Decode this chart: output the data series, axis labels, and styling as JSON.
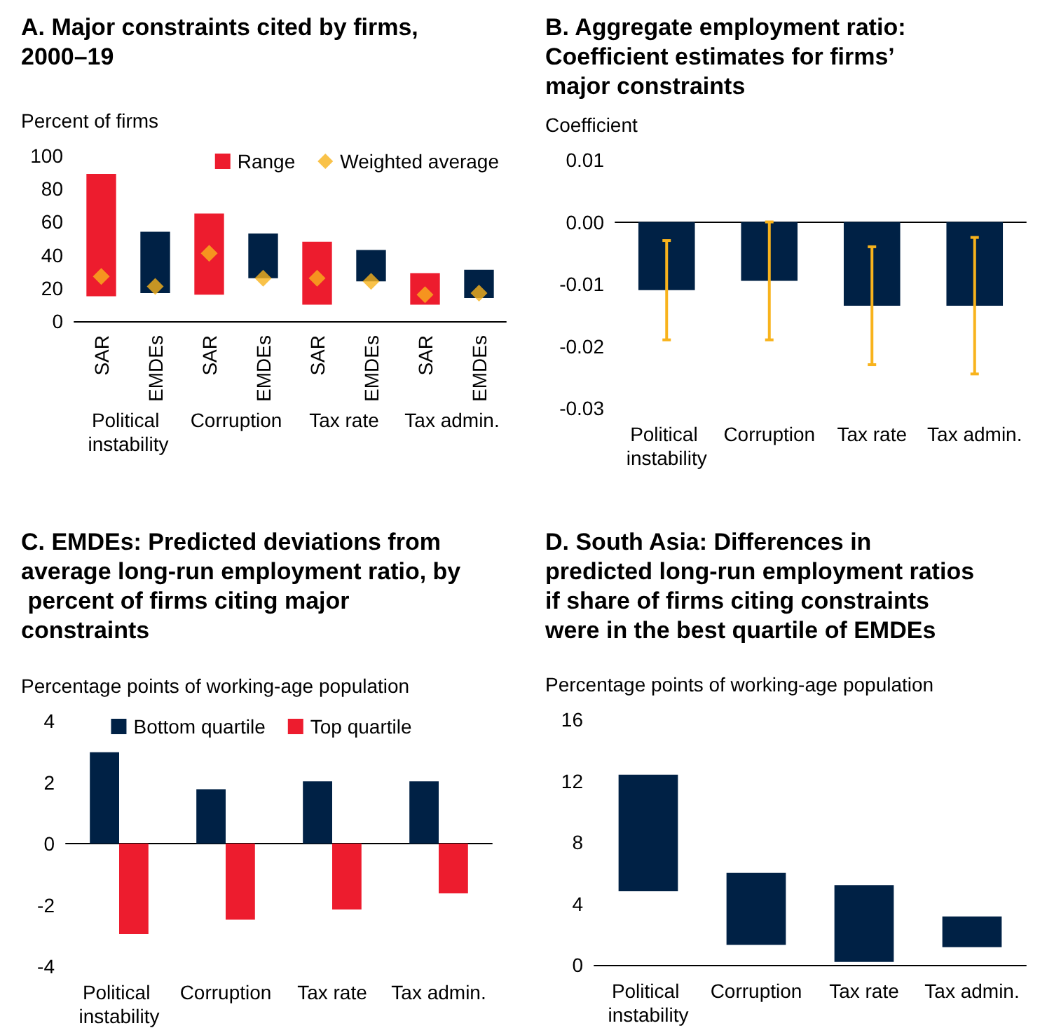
{
  "chart_data": [
    {
      "type": "bar",
      "title": "A. Major constraints cited by firms, 2000–19",
      "ylabel": "Percent of firms",
      "categories": [
        "SAR",
        "EMDEs",
        "SAR",
        "EMDEs",
        "SAR",
        "EMDEs",
        "SAR",
        "EMDEs"
      ],
      "ylim": [
        0,
        100
      ],
      "yticks": [
        0,
        20,
        40,
        60,
        80,
        100
      ],
      "legend": "top right",
      "annotations": [
        "Political instability",
        "Corruption",
        "Tax rate",
        "Tax admin."
      ],
      "series": [
        {
          "name": "Range",
          "color": "#ed1c2e",
          "colors": [
            "#ed1c2e",
            "#002145",
            "#ed1c2e",
            "#002145",
            "#ed1c2e",
            "#002145",
            "#ed1c2e",
            "#002145"
          ],
          "base": [
            15,
            17,
            16,
            26,
            10,
            24,
            10,
            14
          ],
          "values": [
            74,
            37,
            49,
            27,
            38,
            19,
            19,
            17
          ]
        },
        {
          "name": "Weighted average",
          "type": "scatter",
          "marker": "diamond",
          "color": "#f8b31c",
          "values": [
            27,
            21,
            41,
            26,
            26,
            24,
            16,
            17
          ]
        }
      ]
    },
    {
      "type": "bar",
      "title": "B. Aggregate employment ratio: Coefficient estimates for firms’ major constraints",
      "ylabel": "Coefficient",
      "categories": [
        "Political instability",
        "Corruption",
        "Tax rate",
        "Tax admin."
      ],
      "ylim": [
        -0.03,
        0.01
      ],
      "yticks": [
        {
          "value": -0.03,
          "label": "-0.03"
        },
        {
          "value": -0.02,
          "label": "-0.02"
        },
        {
          "value": -0.01,
          "label": "-0.01"
        },
        {
          "value": 0,
          "label": "0.00"
        },
        {
          "value": 0.01,
          "label": "0.01"
        }
      ],
      "series": [
        {
          "color": "#002145",
          "values": [
            -0.011,
            -0.0095,
            -0.0135,
            -0.0135
          ],
          "errors": [
            [
              -0.019,
              -0.003
            ],
            [
              -0.019,
              0
            ],
            [
              -0.023,
              -0.004
            ],
            [
              -0.0245,
              -0.0025
            ]
          ]
        }
      ]
    },
    {
      "type": "bar",
      "title": "C. EMDEs: Predicted deviations from average long-run employment ratio, by percent of firms citing major constraints",
      "ylabel": "Percentage points of working-age population",
      "categories": [
        "Political instability",
        "Corruption",
        "Tax rate",
        "Tax admin."
      ],
      "ylim": [
        -4,
        4
      ],
      "yticks": [
        -4,
        -2,
        0,
        2,
        4
      ],
      "legend": "top",
      "series": [
        {
          "name": "Bottom quartile",
          "color": "#002145",
          "values": [
            2.98,
            1.77,
            2.03,
            2.03
          ]
        },
        {
          "name": "Top quartile",
          "color": "#ed1c2e",
          "values": [
            -2.95,
            -2.48,
            -2.15,
            -1.62
          ]
        }
      ]
    },
    {
      "type": "bar",
      "title": "D. South Asia: Differences in predicted long-run employment ratios if share of firms citing constraints were in the best quartile of EMDEs",
      "ylabel": "Percentage points of working-age population",
      "categories": [
        "Political instability",
        "Corruption",
        "Tax rate",
        "Tax admin."
      ],
      "ylim": [
        0,
        16
      ],
      "yticks": [
        0,
        4,
        8,
        12,
        16
      ],
      "series": [
        {
          "color": "#002145",
          "base": [
            4.8,
            1.3,
            0.2,
            1.15
          ],
          "values": [
            7.6,
            4.7,
            5.0,
            2.0
          ]
        }
      ]
    }
  ]
}
